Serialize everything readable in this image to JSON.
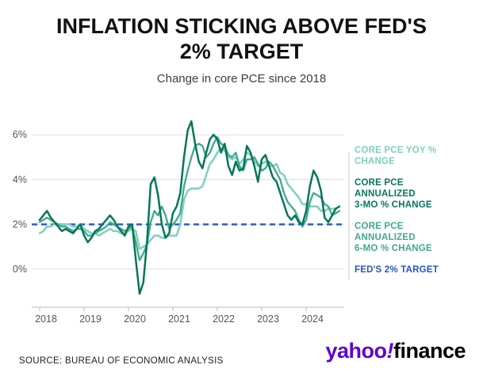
{
  "header": {
    "title_line1": "INFLATION STICKING ABOVE FED'S",
    "title_line2": "2% TARGET",
    "subtitle": "Change in core PCE since 2018"
  },
  "footer": {
    "source": "SOURCE: BUREAU OF ECONOMIC ANALYSIS",
    "logo": {
      "yahoo": "yahoo",
      "bang": "!",
      "finance": "finance"
    }
  },
  "colors": {
    "yoy_teal": "#7dd1bf",
    "three_mo_green": "#06765a",
    "six_mo_teal": "#3fa98e",
    "target_blue": "#2356c8",
    "gridline": "#dcdcdc",
    "axis": "#bbbbbb",
    "tick_label": "#555555",
    "brand_purple": "#5f01d1"
  },
  "chart_data": {
    "type": "line",
    "title": "INFLATION STICKING ABOVE FED'S 2% TARGET",
    "subtitle": "Change in core PCE since 2018",
    "x_start": "2018-01",
    "x_interval": "monthly",
    "x_tick_labels": [
      "2018",
      "2019",
      "2020",
      "2021",
      "2022",
      "2023",
      "2024"
    ],
    "y_ticks": [
      {
        "value": 0,
        "label": "0%"
      },
      {
        "value": 2,
        "label": "2%"
      },
      {
        "value": 4,
        "label": "4%"
      },
      {
        "value": 6,
        "label": "6%"
      }
    ],
    "ylim": [
      -1.6,
      7.2
    ],
    "grid": "horizontal",
    "legend_position": "right",
    "series": [
      {
        "name": "CORE PCE YOY % CHANGE",
        "color": "#7dd1bf",
        "width": 2.5,
        "values": [
          1.6,
          1.7,
          1.9,
          1.9,
          2.0,
          2.0,
          2.0,
          2.0,
          2.0,
          1.9,
          1.9,
          2.0,
          1.8,
          1.7,
          1.6,
          1.6,
          1.5,
          1.6,
          1.7,
          1.8,
          1.7,
          1.7,
          1.6,
          1.6,
          1.7,
          1.8,
          1.7,
          0.9,
          1.0,
          1.1,
          1.3,
          1.5,
          1.5,
          1.4,
          1.4,
          1.5,
          1.5,
          1.5,
          2.0,
          3.1,
          3.5,
          3.6,
          3.6,
          3.6,
          3.7,
          4.2,
          4.7,
          4.9,
          5.2,
          5.4,
          5.3,
          5.0,
          4.9,
          5.0,
          4.7,
          4.9,
          5.2,
          5.1,
          4.8,
          4.6,
          4.7,
          4.8,
          4.6,
          4.6,
          4.7,
          4.3,
          4.2,
          3.8,
          3.6,
          3.4,
          3.2,
          2.9,
          2.9,
          2.8,
          2.8,
          2.8,
          2.6,
          2.6,
          2.7,
          2.7,
          2.7,
          2.8
        ]
      },
      {
        "name": "CORE PCE ANNUALIZED 6-MO % CHANGE",
        "color": "#3fa98e",
        "width": 2.3,
        "values": [
          2.1,
          2.2,
          2.3,
          2.2,
          2.1,
          2.0,
          1.9,
          1.9,
          1.8,
          1.7,
          1.8,
          1.8,
          1.7,
          1.5,
          1.5,
          1.6,
          1.7,
          1.8,
          1.9,
          2.1,
          2.0,
          1.9,
          1.8,
          1.7,
          1.8,
          1.9,
          1.2,
          0.4,
          0.7,
          1.1,
          2.1,
          2.6,
          2.4,
          2.8,
          2.4,
          1.8,
          2.0,
          2.2,
          2.5,
          3.7,
          4.4,
          5.0,
          5.5,
          5.6,
          5.5,
          5.0,
          5.2,
          5.6,
          5.9,
          5.6,
          5.5,
          5.1,
          5.0,
          5.2,
          4.6,
          4.4,
          4.9,
          4.9,
          5.0,
          4.7,
          4.4,
          4.5,
          4.8,
          4.6,
          4.3,
          4.0,
          3.4,
          3.0,
          2.8,
          2.6,
          2.2,
          1.9,
          2.2,
          3.0,
          3.4,
          3.3,
          3.2,
          2.9,
          2.8,
          2.4,
          2.5,
          2.6
        ]
      },
      {
        "name": "CORE PCE ANNUALIZED 3-MO % CHANGE",
        "color": "#06765a",
        "width": 2.5,
        "values": [
          2.2,
          2.4,
          2.6,
          2.3,
          2.1,
          1.9,
          1.7,
          1.8,
          1.7,
          1.6,
          1.8,
          2.0,
          1.5,
          1.2,
          1.4,
          1.7,
          1.8,
          2.0,
          2.2,
          2.4,
          2.2,
          1.9,
          1.7,
          1.5,
          1.9,
          2.0,
          0.4,
          -1.1,
          -0.6,
          1.2,
          3.8,
          4.1,
          3.3,
          2.0,
          1.4,
          1.6,
          2.5,
          2.8,
          3.4,
          5.0,
          6.2,
          6.6,
          5.6,
          4.8,
          4.5,
          5.2,
          5.8,
          6.0,
          5.8,
          5.2,
          5.6,
          4.6,
          4.2,
          4.8,
          4.4,
          4.5,
          5.5,
          5.2,
          4.6,
          3.9,
          4.9,
          5.1,
          4.6,
          4.1,
          3.9,
          3.4,
          2.9,
          2.4,
          2.2,
          2.4,
          2.1,
          2.0,
          2.6,
          3.7,
          4.4,
          4.1,
          3.5,
          2.3,
          2.1,
          2.4,
          2.7,
          2.8
        ]
      }
    ],
    "reference_line": {
      "label": "FED'S 2% TARGET",
      "value": 2,
      "color": "#2356c8",
      "style": "dashed"
    },
    "legend": [
      {
        "lines": [
          "CORE PCE YOY %",
          "CHANGE"
        ],
        "color": "#7dd1bf"
      },
      {
        "lines": [
          "CORE PCE",
          "ANNUALIZED",
          "3-MO % CHANGE"
        ],
        "color": "#06765a"
      },
      {
        "lines": [
          "CORE PCE",
          "ANNUALIZED",
          "6-MO % CHANGE"
        ],
        "color": "#3fa98e"
      },
      {
        "lines": [
          "FED'S 2% TARGET"
        ],
        "color": "#2356c8"
      }
    ]
  }
}
